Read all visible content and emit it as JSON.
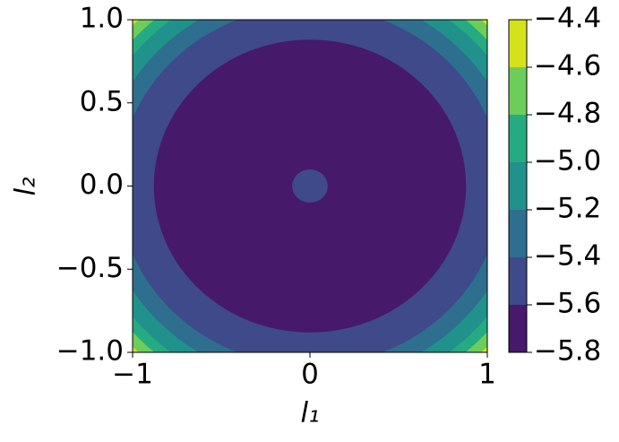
{
  "chart_data": {
    "type": "contour",
    "xlabel": "l₁",
    "ylabel": "l₂",
    "xlim": [
      -1,
      1
    ],
    "ylim": [
      -1,
      1
    ],
    "xticks": [
      {
        "value": -1,
        "label": "−1"
      },
      0,
      1
    ],
    "yticks": [
      {
        "value": -1,
        "label": "−1.0"
      },
      {
        "value": -0.5,
        "label": "−0.5"
      },
      {
        "value": 0,
        "label": "0.0"
      },
      0.5,
      {
        "value": 1,
        "label": "1.0"
      }
    ],
    "colorbar_ticks": [
      {
        "value": -5.8,
        "label": "−5.8"
      },
      {
        "value": -5.6,
        "label": "−5.6"
      },
      {
        "value": -5.4,
        "label": "−5.4"
      },
      {
        "value": -5.2,
        "label": "−5.2"
      },
      {
        "value": -5.0,
        "label": "−5.0"
      },
      {
        "value": -4.8,
        "label": "−4.8"
      },
      {
        "value": -4.6,
        "label": "−4.6"
      },
      {
        "value": -4.4,
        "label": "−4.4"
      }
    ],
    "colors": [
      "#46196b",
      "#3e4a89",
      "#2e6e8e",
      "#21918c",
      "#25ab82",
      "#6ccd5a",
      "#d5e21a"
    ],
    "regions": [
      {
        "radius": 1.39,
        "color": "#6ccd5a"
      },
      {
        "radius": 1.33,
        "color": "#25ab82"
      },
      {
        "radius": 1.27,
        "color": "#21918c"
      },
      {
        "radius": 1.18,
        "color": "#2e6e8e"
      },
      {
        "radius": 1.08,
        "color": "#3e4a89"
      },
      {
        "radius": 0.88,
        "color": "#46196b"
      },
      {
        "radius": 0.1,
        "color": "#3e4a89"
      }
    ]
  }
}
